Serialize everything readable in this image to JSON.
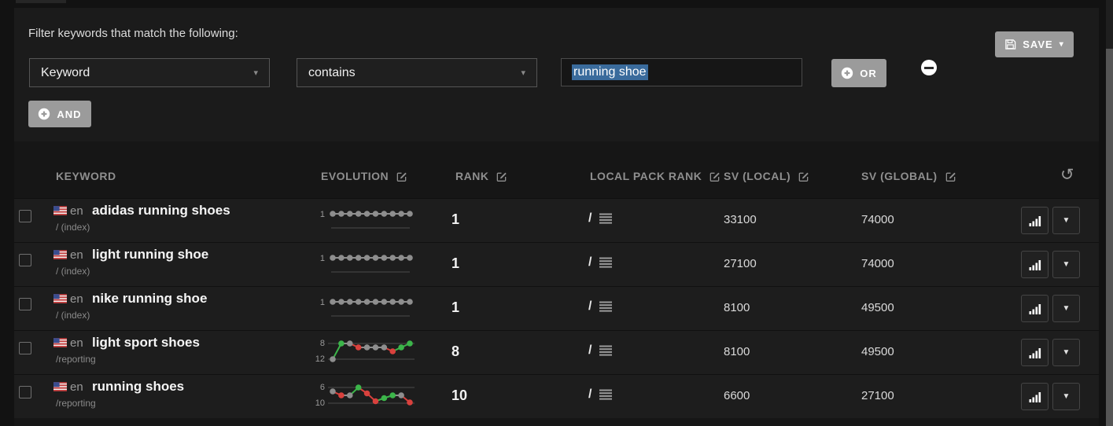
{
  "filter": {
    "title": "Filter keywords that match the following:",
    "field_dropdown": "Keyword",
    "operator_dropdown": "contains",
    "value_input": "running shoe",
    "and_label": "AND",
    "or_label": "OR",
    "save_label": "SAVE"
  },
  "icons": {
    "select_caret": "▾",
    "caret_down": "▼",
    "refresh": "↺"
  },
  "colors": {
    "accent_green": "#3cb54a",
    "accent_red": "#d9413d",
    "neutral_dot": "#8e8e8e",
    "selection_blue": "#3a6b9c",
    "grid_line": "#4a4a4a"
  },
  "table": {
    "headers": {
      "keyword": "KEYWORD",
      "evolution": "EVOLUTION",
      "rank": "RANK",
      "local_pack_rank": "LOCAL PACK RANK",
      "sv_local": "SV (LOCAL)",
      "sv_global": "SV (GLOBAL)"
    },
    "rows": [
      {
        "locale": "en",
        "keyword": "adidas running shoes",
        "path": "/ (index)",
        "rank": "1",
        "local_pack": "/",
        "sv_local": "33100",
        "sv_global": "74000",
        "evolution": {
          "axis_top": "1",
          "axis_bottom": "",
          "values": [
            1,
            1,
            1,
            1,
            1,
            1,
            1,
            1,
            1,
            1
          ]
        }
      },
      {
        "locale": "en",
        "keyword": "light running shoe",
        "path": "/ (index)",
        "rank": "1",
        "local_pack": "/",
        "sv_local": "27100",
        "sv_global": "74000",
        "evolution": {
          "axis_top": "1",
          "axis_bottom": "",
          "values": [
            1,
            1,
            1,
            1,
            1,
            1,
            1,
            1,
            1,
            1
          ]
        }
      },
      {
        "locale": "en",
        "keyword": "nike running shoe",
        "path": "/ (index)",
        "rank": "1",
        "local_pack": "/",
        "sv_local": "8100",
        "sv_global": "49500",
        "evolution": {
          "axis_top": "1",
          "axis_bottom": "",
          "values": [
            1,
            1,
            1,
            1,
            1,
            1,
            1,
            1,
            1,
            1
          ]
        }
      },
      {
        "locale": "en",
        "keyword": "light sport shoes",
        "path": "/reporting",
        "rank": "8",
        "local_pack": "/",
        "sv_local": "8100",
        "sv_global": "49500",
        "evolution": {
          "axis_top": "8",
          "axis_bottom": "12",
          "values": [
            12,
            8,
            8,
            9,
            9,
            9,
            9,
            10,
            9,
            8
          ]
        }
      },
      {
        "locale": "en",
        "keyword": "running shoes",
        "path": "/reporting",
        "rank": "10",
        "local_pack": "/",
        "sv_local": "6600",
        "sv_global": "27100",
        "evolution": {
          "axis_top": "6",
          "axis_bottom": "10",
          "values": [
            7,
            8,
            8,
            6,
            7.5,
            9.5,
            8.7,
            8,
            8,
            9.8
          ]
        }
      }
    ]
  }
}
